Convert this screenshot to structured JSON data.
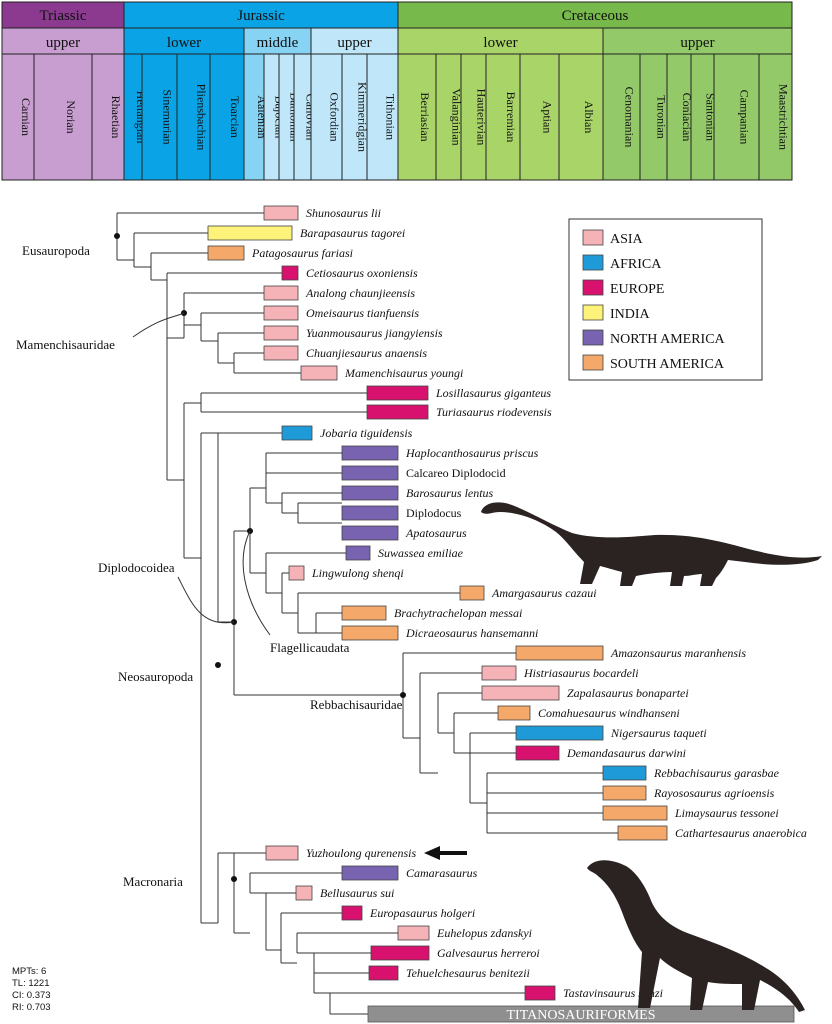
{
  "colors": {
    "ASIA": "#f5b3b8",
    "AFRICA": "#1f9ad9",
    "EUROPE": "#d8116e",
    "INDIA": "#fdf27a",
    "NORTH_AMERICA": "#7763b0",
    "SOUTH_AMERICA": "#f4a86a",
    "Triassic": "#8b3a8f",
    "TriassicSub": "#c89ed0",
    "Jurassic": "#0aa4e6",
    "JurassicMid": "#86d3f3",
    "JurassicUpper": "#bfe6f9",
    "Cretaceous": "#77b94b",
    "CretLower": "#a9d468",
    "CretUpper": "#93c969",
    "titano": "#8f8f8f"
  },
  "periods": [
    "Triassic",
    "Jurassic",
    "Cretaceous"
  ],
  "epochs": [
    "upper",
    "lower",
    "middle",
    "upper",
    "lower",
    "upper"
  ],
  "stages": [
    "Carnian",
    "Norian",
    "Rhaetian",
    "Hettangian",
    "Sinemurian",
    "Pliensbachian",
    "Toarcian",
    "Aalenian",
    "Bajocian",
    "Bathonian",
    "Callovian",
    "Oxfordian",
    "Kimmeridgian",
    "Tithonian",
    "Berriasian",
    "Valanginian",
    "Hauterivian",
    "Barremian",
    "Aptian",
    "Albian",
    "Cenomanian",
    "Turonian",
    "Coniacian",
    "Santonian",
    "Campanian",
    "Maastrichtian"
  ],
  "legend": [
    {
      "label": "ASIA",
      "color": "ASIA"
    },
    {
      "label": "AFRICA",
      "color": "AFRICA"
    },
    {
      "label": "EUROPE",
      "color": "EUROPE"
    },
    {
      "label": "INDIA",
      "color": "INDIA"
    },
    {
      "label": "NORTH AMERICA",
      "color": "NORTH_AMERICA"
    },
    {
      "label": "SOUTH AMERICA",
      "color": "SOUTH_AMERICA"
    }
  ],
  "taxa": [
    {
      "name": "Shunosaurus lii",
      "region": "ASIA",
      "italic": true
    },
    {
      "name": "Barapasaurus tagorei",
      "region": "INDIA",
      "italic": true
    },
    {
      "name": "Patagosaurus fariasi",
      "region": "SOUTH_AMERICA",
      "italic": true
    },
    {
      "name": "Cetiosaurus oxoniensis",
      "region": "EUROPE",
      "italic": true
    },
    {
      "name": "Analong chaunjieensis",
      "region": "ASIA",
      "italic": true
    },
    {
      "name": "Omeisaurus tianfuensis",
      "region": "ASIA",
      "italic": true
    },
    {
      "name": "Yuanmousaurus jiangyiensis",
      "region": "ASIA",
      "italic": true
    },
    {
      "name": "Chuanjiesaurus anaensis",
      "region": "ASIA",
      "italic": true
    },
    {
      "name": "Mamenchisaurus youngi",
      "region": "ASIA",
      "italic": true
    },
    {
      "name": "Losillasaurus giganteus",
      "region": "EUROPE",
      "italic": true
    },
    {
      "name": "Turiasaurus riodevensis",
      "region": "EUROPE",
      "italic": true
    },
    {
      "name": "Jobaria tiguidensis",
      "region": "AFRICA",
      "italic": true
    },
    {
      "name": "Haplocanthosaurus priscus",
      "region": "NORTH_AMERICA",
      "italic": true
    },
    {
      "name": "Calcareo Diplodocid",
      "region": "NORTH_AMERICA",
      "italic": false
    },
    {
      "name": "Barosaurus lentus",
      "region": "NORTH_AMERICA",
      "italic": true
    },
    {
      "name": "Diplodocus",
      "region": "NORTH_AMERICA",
      "italic": false
    },
    {
      "name": "Apatosaurus",
      "region": "NORTH_AMERICA",
      "italic": true
    },
    {
      "name": "Suwassea emiliae",
      "region": "NORTH_AMERICA",
      "italic": true
    },
    {
      "name": "Lingwulong shenqi",
      "region": "ASIA",
      "italic": true
    },
    {
      "name": "Amargasaurus cazaui",
      "region": "SOUTH_AMERICA",
      "italic": true
    },
    {
      "name": "Brachytrachelopan messai",
      "region": "SOUTH_AMERICA",
      "italic": true
    },
    {
      "name": "Dicraeosaurus hansemanni",
      "region": "SOUTH_AMERICA",
      "italic": true
    },
    {
      "name": "Amazonsaurus maranhensis",
      "region": "SOUTH_AMERICA",
      "italic": true
    },
    {
      "name": "Histriasaurus bocardeli",
      "region": "ASIA",
      "italic": true
    },
    {
      "name": "Zapalasaurus bonapartei",
      "region": "ASIA",
      "italic": true
    },
    {
      "name": "Comahuesaurus windhanseni",
      "region": "SOUTH_AMERICA",
      "italic": true
    },
    {
      "name": "Nigersaurus taqueti",
      "region": "AFRICA",
      "italic": true
    },
    {
      "name": "Demandasaurus darwini",
      "region": "EUROPE",
      "italic": true
    },
    {
      "name": "Rebbachisaurus garasbae",
      "region": "AFRICA",
      "italic": true
    },
    {
      "name": "Rayososaurus agrioensis",
      "region": "SOUTH_AMERICA",
      "italic": true
    },
    {
      "name": "Limaysaurus tessonei",
      "region": "SOUTH_AMERICA",
      "italic": true
    },
    {
      "name": "Cathartesaurus anaerobica",
      "region": "SOUTH_AMERICA",
      "italic": true
    },
    {
      "name": "Yuzhoulong qurenensis",
      "region": "ASIA",
      "italic": true
    },
    {
      "name": "Camarasaurus",
      "region": "NORTH_AMERICA",
      "italic": true
    },
    {
      "name": "Bellusaurus sui",
      "region": "ASIA",
      "italic": true
    },
    {
      "name": "Europasaurus holgeri",
      "region": "EUROPE",
      "italic": true
    },
    {
      "name": "Euhelopus zdanskyi",
      "region": "ASIA",
      "italic": true
    },
    {
      "name": "Galvesaurus herreroi",
      "region": "EUROPE",
      "italic": true
    },
    {
      "name": "Tehuelchesaurus benitezii",
      "region": "EUROPE",
      "italic": true
    },
    {
      "name": "Tastavinsaurus sanzi",
      "region": "EUROPE",
      "italic": true
    }
  ],
  "titano_label": "TITANOSAURIFORMES",
  "clades": [
    "Eusauropoda",
    "Mamenchisauridae",
    "Diplodocoidea",
    "Flagellicaudata",
    "Neosauropoda",
    "Rebbachisauridae",
    "Macronaria"
  ],
  "stats": [
    "MPTs: 6",
    "TL: 1221",
    "CI: 0.373",
    "RI: 0.703"
  ]
}
